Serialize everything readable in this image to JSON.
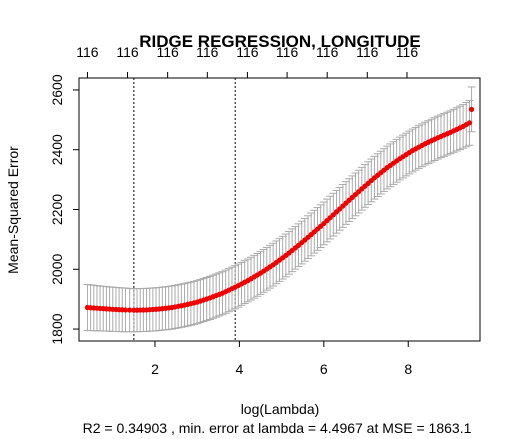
{
  "chart_data": {
    "type": "line",
    "title": "RIDGE REGRESSION, LONGITUDE",
    "xlabel": "log(Lambda)",
    "ylabel": "Mean-Squared Error",
    "caption": "R2 =  0.34903 , min. error at lambda =  4.4967  at MSE =  1863.1",
    "xlim": [
      0.2,
      9.7
    ],
    "ylim": [
      1760,
      2640
    ],
    "x_ticks": [
      2,
      4,
      6,
      8
    ],
    "y_ticks": [
      1800,
      2000,
      2200,
      2400,
      2600
    ],
    "top_axis": {
      "labels": [
        "116",
        "116",
        "116",
        "116",
        "116",
        "116",
        "116",
        "116",
        "116"
      ],
      "positions": [
        0.4,
        1.35,
        2.3,
        3.24,
        4.19,
        5.13,
        6.08,
        7.03,
        7.97
      ]
    },
    "vlines": [
      1.5,
      3.9
    ],
    "series": [
      {
        "color": "#ee0000",
        "errorbar_color": "#aaaaaa",
        "points": [
          {
            "x": 0.4,
            "y": 1872,
            "lo": 1795,
            "hi": 1949
          },
          {
            "x": 0.7,
            "y": 1869,
            "lo": 1794,
            "hi": 1944
          },
          {
            "x": 1.0,
            "y": 1866,
            "lo": 1792,
            "hi": 1940
          },
          {
            "x": 1.3,
            "y": 1864,
            "lo": 1791,
            "hi": 1937
          },
          {
            "x": 1.5,
            "y": 1863,
            "lo": 1791,
            "hi": 1935
          },
          {
            "x": 1.8,
            "y": 1864,
            "lo": 1792,
            "hi": 1936
          },
          {
            "x": 2.1,
            "y": 1867,
            "lo": 1795,
            "hi": 1939
          },
          {
            "x": 2.4,
            "y": 1872,
            "lo": 1800,
            "hi": 1944
          },
          {
            "x": 2.7,
            "y": 1880,
            "lo": 1808,
            "hi": 1952
          },
          {
            "x": 3.0,
            "y": 1890,
            "lo": 1818,
            "hi": 1962
          },
          {
            "x": 3.3,
            "y": 1904,
            "lo": 1832,
            "hi": 1976
          },
          {
            "x": 3.6,
            "y": 1920,
            "lo": 1848,
            "hi": 1992
          },
          {
            "x": 3.9,
            "y": 1940,
            "lo": 1868,
            "hi": 2012
          },
          {
            "x": 4.2,
            "y": 1962,
            "lo": 1891,
            "hi": 2034
          },
          {
            "x": 4.5,
            "y": 1987,
            "lo": 1916,
            "hi": 2059
          },
          {
            "x": 4.8,
            "y": 2015,
            "lo": 1944,
            "hi": 2087
          },
          {
            "x": 5.1,
            "y": 2046,
            "lo": 1975,
            "hi": 2118
          },
          {
            "x": 5.4,
            "y": 2080,
            "lo": 2009,
            "hi": 2152
          },
          {
            "x": 5.7,
            "y": 2116,
            "lo": 2045,
            "hi": 2188
          },
          {
            "x": 6.0,
            "y": 2153,
            "lo": 2082,
            "hi": 2225
          },
          {
            "x": 6.3,
            "y": 2192,
            "lo": 2121,
            "hi": 2264
          },
          {
            "x": 6.6,
            "y": 2231,
            "lo": 2160,
            "hi": 2303
          },
          {
            "x": 6.9,
            "y": 2269,
            "lo": 2198,
            "hi": 2341
          },
          {
            "x": 7.2,
            "y": 2306,
            "lo": 2235,
            "hi": 2378
          },
          {
            "x": 7.5,
            "y": 2340,
            "lo": 2269,
            "hi": 2412
          },
          {
            "x": 7.8,
            "y": 2370,
            "lo": 2299,
            "hi": 2442
          },
          {
            "x": 8.1,
            "y": 2397,
            "lo": 2326,
            "hi": 2469
          },
          {
            "x": 8.4,
            "y": 2420,
            "lo": 2349,
            "hi": 2492
          },
          {
            "x": 8.7,
            "y": 2440,
            "lo": 2369,
            "hi": 2512
          },
          {
            "x": 9.0,
            "y": 2458,
            "lo": 2387,
            "hi": 2530
          },
          {
            "x": 9.3,
            "y": 2478,
            "lo": 2405,
            "hi": 2551
          },
          {
            "x": 9.45,
            "y": 2490,
            "lo": 2415,
            "hi": 2565
          },
          {
            "x": 9.5,
            "y": 2535,
            "lo": 2460,
            "hi": 2610
          }
        ]
      }
    ]
  }
}
